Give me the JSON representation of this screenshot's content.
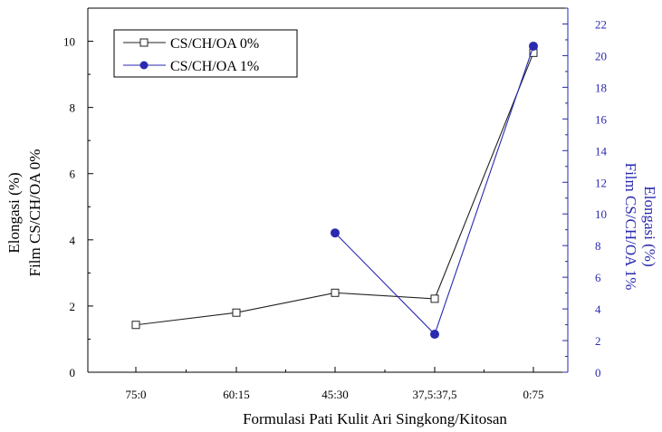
{
  "chart_data": {
    "type": "line",
    "categories": [
      "75:0",
      "60:15",
      "45:30",
      "37,5:37,5",
      "0:75"
    ],
    "xlabel": "Formulasi Pati Kulit Ari Singkong/Kitosan",
    "ylabel_left": [
      "Elongasi (%)",
      "Film CS/CH/OA 0%"
    ],
    "ylabel_right": [
      "Elongasi (%)",
      "Film CS/CH/OA 1%"
    ],
    "ylim_left": [
      0,
      11
    ],
    "ylim_right": [
      0,
      23
    ],
    "yticks_left": [
      "0",
      "2",
      "4",
      "6",
      "8",
      "10"
    ],
    "yticks_right": [
      "0",
      "2",
      "4",
      "6",
      "8",
      "10",
      "12",
      "14",
      "16",
      "18",
      "20",
      "22"
    ],
    "legend_position": "top-left",
    "grid": false,
    "series": [
      {
        "name": "CS/CH/OA 0%",
        "axis": "left",
        "marker": "open-square",
        "color": "#222222",
        "values": [
          1.43,
          1.8,
          2.4,
          2.22,
          9.65
        ]
      },
      {
        "name": "CS/CH/OA 1%",
        "axis": "right",
        "marker": "filled-circle",
        "color": "#2a2ab0",
        "values": [
          null,
          null,
          8.8,
          2.4,
          20.6
        ]
      }
    ]
  }
}
